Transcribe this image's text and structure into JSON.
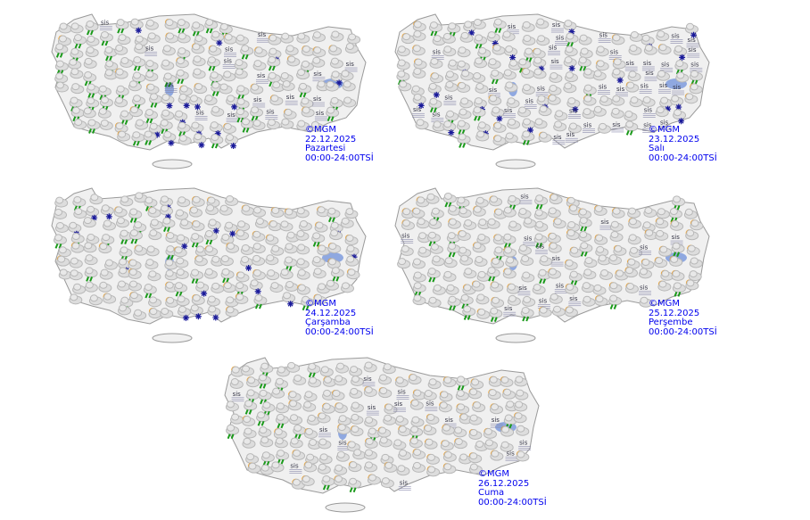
{
  "colors": {
    "land": "#f0f0f0",
    "border": "#9a9a9a",
    "lake": "#8fa8e0",
    "caption": "#0000ee",
    "cloud": "#b8b8b8",
    "rain": "#1a9a1a",
    "snow": "#1a1a9a",
    "sun": "#ff9a00"
  },
  "icon_types": [
    "cloud-icon",
    "rain-icon",
    "snow-icon",
    "sun-cloud-icon",
    "fog-icon",
    "thunderstorm-icon"
  ],
  "fog_label": "sis",
  "maps": [
    {
      "copyright": "©MGM",
      "date": "22.12.2025",
      "day": "Pazartesi",
      "period": "00:00-24:00TSİ",
      "mix": {
        "cloud": 0.35,
        "rain": 0.3,
        "snow": 0.08,
        "sun": 0.17,
        "fog": 0.1
      }
    },
    {
      "copyright": "©MGM",
      "date": "23.12.2025",
      "day": "Salı",
      "period": "00:00-24:00TSİ",
      "mix": {
        "cloud": 0.4,
        "rain": 0.15,
        "snow": 0.1,
        "sun": 0.15,
        "fog": 0.2
      }
    },
    {
      "copyright": "©MGM",
      "date": "24.12.2025",
      "day": "Çarşamba",
      "period": "00:00-24:00TSİ",
      "mix": {
        "cloud": 0.5,
        "rain": 0.15,
        "snow": 0.1,
        "sun": 0.25,
        "fog": 0.0
      }
    },
    {
      "copyright": "©MGM",
      "date": "25.12.2025",
      "day": "Perşembe",
      "period": "00:00-24:00TSİ",
      "mix": {
        "cloud": 0.4,
        "rain": 0.2,
        "snow": 0.0,
        "sun": 0.3,
        "fog": 0.1
      }
    },
    {
      "copyright": "©MGM",
      "date": "26.12.2025",
      "day": "Cuma",
      "period": "00:00-24:00TSİ",
      "mix": {
        "cloud": 0.35,
        "rain": 0.12,
        "snow": 0.0,
        "sun": 0.45,
        "fog": 0.08
      }
    }
  ]
}
